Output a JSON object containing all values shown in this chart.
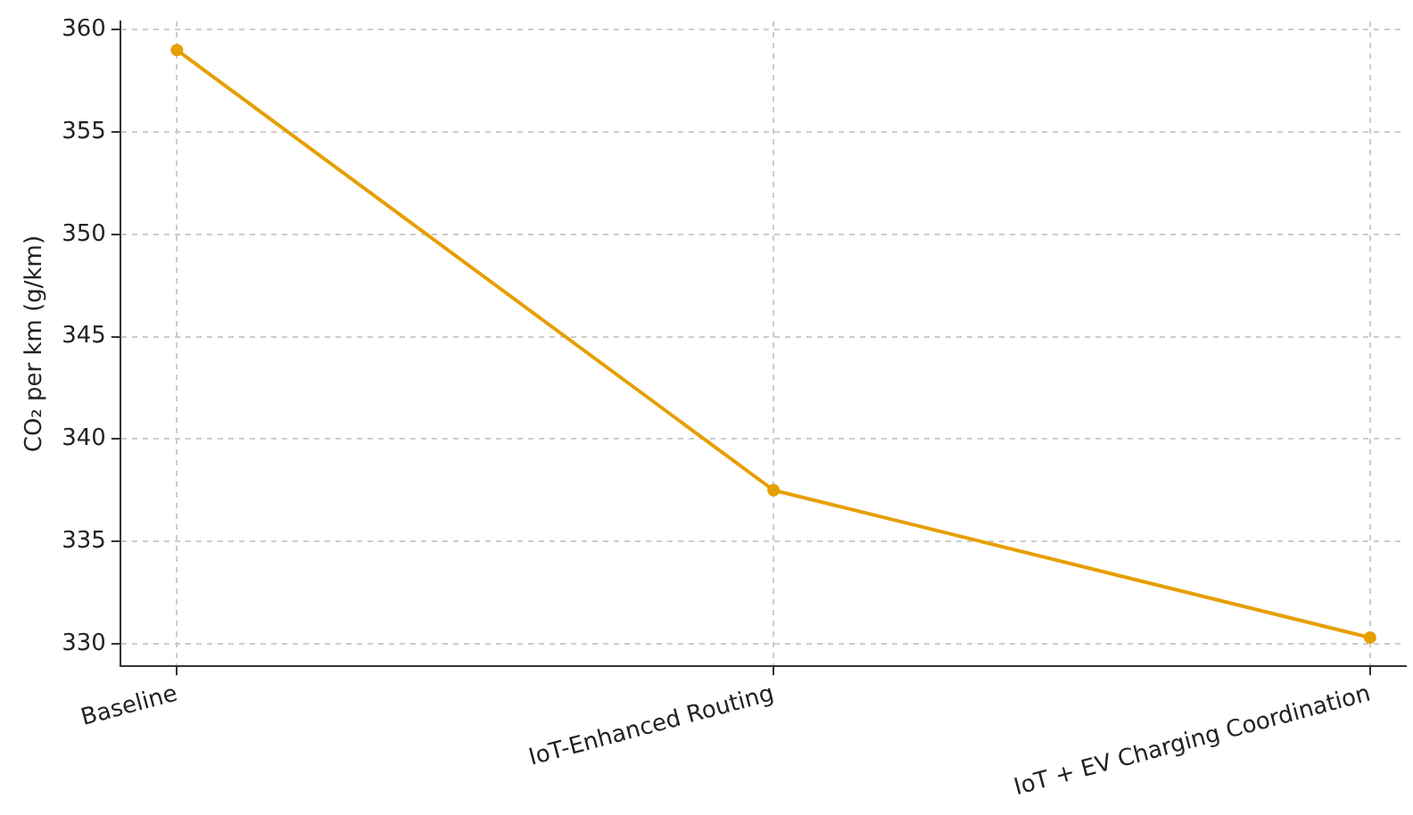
{
  "chart_data": {
    "type": "line",
    "ylabel": "CO₂ per km (g/km)",
    "categories": [
      "Baseline",
      "IoT-Enhanced Routing",
      "IoT + EV Charging Coordination"
    ],
    "series": [
      {
        "color": "#e69f00",
        "values": [
          359.0,
          337.5,
          330.3
        ]
      }
    ],
    "ylim": [
      328.9,
      360.4
    ],
    "yticks": [
      330,
      335,
      340,
      345,
      350,
      355,
      360
    ],
    "grid": true,
    "legend": false,
    "marker": "circle",
    "line_style": "solid"
  }
}
